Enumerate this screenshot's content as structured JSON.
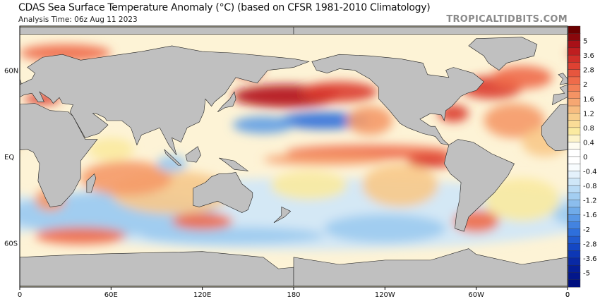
{
  "header": {
    "title": "CDAS Sea Surface Temperature Anomaly (°C) (based on CFSR 1981-2010 Climatology)",
    "subtitle": "Analysis Time: 06z Aug 11 2023",
    "brand": "TROPICALTIDBITS.COM"
  },
  "axes": {
    "lat_labels": [
      {
        "text": "60N",
        "lat": 60
      },
      {
        "text": "EQ",
        "lat": 0
      },
      {
        "text": "60S",
        "lat": -60
      }
    ],
    "lon_labels": [
      {
        "text": "0",
        "lon": 0
      },
      {
        "text": "60E",
        "lon": 60
      },
      {
        "text": "120E",
        "lon": 120
      },
      {
        "text": "180",
        "lon": 180
      },
      {
        "text": "120W",
        "lon": 240
      },
      {
        "text": "60W",
        "lon": 300
      },
      {
        "text": "0",
        "lon": 360
      }
    ]
  },
  "colorbar": {
    "labels": [
      "5",
      "3.6",
      "2.8",
      "2",
      "1.6",
      "1.2",
      "0.8",
      "0.4",
      "0",
      "-0.4",
      "-0.8",
      "-1.2",
      "-1.6",
      "-2",
      "-2.8",
      "-3.6",
      "-5"
    ],
    "stops": [
      "#6b0000",
      "#b3131b",
      "#dc3a2e",
      "#ef6b4a",
      "#f59a68",
      "#f8c98a",
      "#fbeaa0",
      "#ffffff",
      "#ffffff",
      "#cfe7f8",
      "#9ccaf0",
      "#5f9ee6",
      "#2e6fdc",
      "#1040c0",
      "#06209a",
      "#001080"
    ],
    "bottom_label": "0"
  },
  "colors": {
    "land": "#c0c0c0",
    "ocean_base": "#fdf3d6"
  }
}
